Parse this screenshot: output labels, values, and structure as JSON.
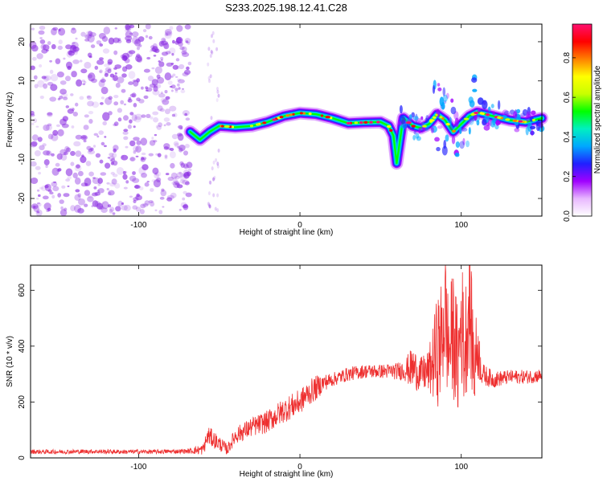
{
  "title": "S233.2025.198.12.41.C28",
  "colors": {
    "snr_line": "#ee3030",
    "speckle": "#8a2be2",
    "colormap": [
      "#ffffff",
      "#e8b8ff",
      "#a000ff",
      "#2020ff",
      "#00a8ff",
      "#00f0c0",
      "#00ff00",
      "#c8ff00",
      "#ffff00",
      "#ff8000",
      "#ff0000",
      "#ff1070"
    ]
  },
  "chart_data": [
    {
      "type": "heatmap",
      "xlabel": "Height of straight line (km)",
      "ylabel": "Frequency (Hz)",
      "xlim": [
        -167,
        150
      ],
      "ylim": [
        -24.5,
        24.5
      ],
      "xticks": [
        -100,
        0,
        100
      ],
      "xtick_labels": [
        "-100",
        "0",
        "100"
      ],
      "yticks": [
        -20,
        -10,
        0,
        10,
        20
      ],
      "ytick_labels": [
        "-20",
        "-10",
        "0",
        "10",
        "20"
      ],
      "colorbar": {
        "label": "Normalized spectral amplitude",
        "range": [
          0,
          0.97
        ],
        "ticks": [
          0,
          0.2,
          0.4,
          0.6,
          0.8
        ],
        "tick_labels": [
          "0.0",
          "0.2",
          "0.4",
          "0.6",
          "0.8"
        ]
      },
      "noise_region_x": [
        -167,
        -68
      ],
      "ridge": [
        {
          "x": -68,
          "y": -3.0
        },
        {
          "x": -62,
          "y": -5.0
        },
        {
          "x": -56,
          "y": -3.0
        },
        {
          "x": -50,
          "y": -1.5
        },
        {
          "x": -40,
          "y": -1.8
        },
        {
          "x": -30,
          "y": -1.5
        },
        {
          "x": -20,
          "y": -0.5
        },
        {
          "x": -10,
          "y": 1.0
        },
        {
          "x": 0,
          "y": 1.8
        },
        {
          "x": 10,
          "y": 1.5
        },
        {
          "x": 20,
          "y": 0.5
        },
        {
          "x": 30,
          "y": -0.8
        },
        {
          "x": 40,
          "y": -0.6
        },
        {
          "x": 50,
          "y": -0.5
        },
        {
          "x": 55,
          "y": -1.5
        },
        {
          "x": 58,
          "y": -4.0
        },
        {
          "x": 60,
          "y": -11.0
        },
        {
          "x": 64,
          "y": 0.5
        },
        {
          "x": 70,
          "y": -1.5
        },
        {
          "x": 75,
          "y": -2.0
        },
        {
          "x": 80,
          "y": -1.0
        },
        {
          "x": 85,
          "y": 1.5
        },
        {
          "x": 90,
          "y": 0.0
        },
        {
          "x": 95,
          "y": -3.0
        },
        {
          "x": 100,
          "y": -1.0
        },
        {
          "x": 105,
          "y": 1.0
        },
        {
          "x": 110,
          "y": 2.0
        },
        {
          "x": 120,
          "y": 1.0
        },
        {
          "x": 130,
          "y": 0.0
        },
        {
          "x": 140,
          "y": -0.5
        },
        {
          "x": 150,
          "y": 0.5
        }
      ]
    },
    {
      "type": "line",
      "xlabel": "Height of straight line (km)",
      "ylabel": "SNR (10 * v/v)",
      "xlim": [
        -167,
        150
      ],
      "ylim": [
        0,
        690
      ],
      "xticks": [
        -100,
        0,
        100
      ],
      "xtick_labels": [
        "-100",
        "0",
        "100"
      ],
      "yticks": [
        0,
        200,
        400,
        600
      ],
      "ytick_labels": [
        "0",
        "200",
        "400",
        "600"
      ],
      "series": [
        {
          "x": [
            -167,
            -150,
            -130,
            -110,
            -90,
            -70,
            -60,
            -57,
            -52,
            -45,
            -40,
            -30,
            -20,
            -10,
            0,
            5,
            10,
            15,
            20,
            30,
            40,
            50,
            60,
            65,
            70,
            75,
            80,
            85,
            88,
            90,
            92,
            95,
            98,
            100,
            102,
            105,
            108,
            110,
            113,
            120,
            130,
            140,
            150
          ],
          "y": [
            22,
            22,
            23,
            22,
            22,
            24,
            30,
            80,
            60,
            30,
            80,
            110,
            130,
            170,
            200,
            230,
            250,
            270,
            280,
            300,
            310,
            310,
            310,
            315,
            320,
            300,
            310,
            380,
            420,
            550,
            380,
            450,
            330,
            500,
            380,
            560,
            320,
            400,
            300,
            280,
            290,
            290,
            295
          ],
          "noise_amp": [
            8,
            8,
            8,
            8,
            8,
            8,
            20,
            35,
            30,
            20,
            30,
            35,
            40,
            45,
            45,
            45,
            45,
            30,
            25,
            25,
            25,
            25,
            30,
            40,
            80,
            60,
            80,
            200,
            220,
            250,
            200,
            230,
            200,
            240,
            220,
            230,
            180,
            120,
            40,
            30,
            25,
            25,
            25
          ]
        }
      ]
    }
  ]
}
